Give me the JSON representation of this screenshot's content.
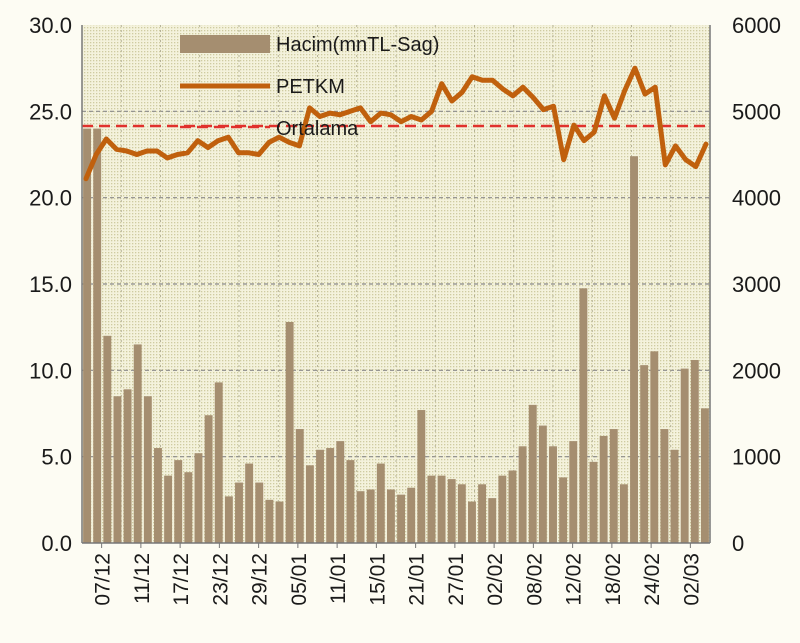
{
  "chart_data": {
    "type": "bar+line",
    "title": "",
    "xlabel": "",
    "ylabel_left": "",
    "ylabel_right": "",
    "ylim_left": [
      0,
      30
    ],
    "ylim_right": [
      0,
      6000
    ],
    "yticks_left": [
      "0.0",
      "5.0",
      "10.0",
      "15.0",
      "20.0",
      "25.0",
      "30.0"
    ],
    "yticks_right": [
      "0",
      "1000",
      "2000",
      "3000",
      "4000",
      "5000",
      "6000"
    ],
    "xtick_labels": [
      "07/12",
      "11/12",
      "17/12",
      "23/12",
      "29/12",
      "05/01",
      "11/01",
      "15/01",
      "21/01",
      "27/01",
      "02/02",
      "08/02",
      "12/02",
      "18/02",
      "24/02",
      "02/03"
    ],
    "grid": true,
    "legend_position": "top",
    "colors": {
      "bars": "#a58e70",
      "line": "#c0600d",
      "average": "#e0312c",
      "grid": "#8a8a8a",
      "plot_background": "#e8e5c2",
      "page_background": "#fdfcf3"
    },
    "legend": {
      "volume": "Hacim(mnTL-Sag)",
      "price": "PETKM",
      "average": "Ortalama"
    },
    "series": [
      {
        "name": "Hacim(mnTL-Sag)",
        "type": "bar",
        "axis": "right",
        "values": [
          4800,
          4800,
          2400,
          1700,
          1780,
          2300,
          1700,
          1100,
          780,
          960,
          820,
          1040,
          1480,
          1860,
          540,
          700,
          920,
          700,
          500,
          480,
          2560,
          1320,
          900,
          1080,
          1100,
          1180,
          960,
          600,
          620,
          920,
          620,
          560,
          640,
          1540,
          780,
          780,
          740,
          680,
          480,
          680,
          520,
          780,
          840,
          1120,
          1600,
          1360,
          1120,
          760,
          1180,
          2950,
          940,
          1240,
          1320,
          680,
          4480,
          2060,
          2220,
          1320,
          1080,
          2020,
          2120,
          1560
        ]
      },
      {
        "name": "PETKM",
        "type": "line",
        "axis": "left",
        "values": [
          21.1,
          22.5,
          23.4,
          22.8,
          22.7,
          22.5,
          22.7,
          22.7,
          22.3,
          22.5,
          22.6,
          23.3,
          22.9,
          23.3,
          23.5,
          22.6,
          22.6,
          22.5,
          23.2,
          23.5,
          23.2,
          23.0,
          25.2,
          24.7,
          24.9,
          24.8,
          25.0,
          25.2,
          24.4,
          24.9,
          24.8,
          24.4,
          24.7,
          24.5,
          25.0,
          26.6,
          25.6,
          26.1,
          27.0,
          26.8,
          26.8,
          26.3,
          25.9,
          26.4,
          25.8,
          25.1,
          25.3,
          22.2,
          24.2,
          23.3,
          23.8,
          25.9,
          24.6,
          26.2,
          27.5,
          26.0,
          26.4,
          21.9,
          23.0,
          22.2,
          21.8,
          23.1
        ]
      },
      {
        "name": "Ortalama",
        "type": "line",
        "axis": "left",
        "values": [
          24.15
        ]
      }
    ]
  }
}
